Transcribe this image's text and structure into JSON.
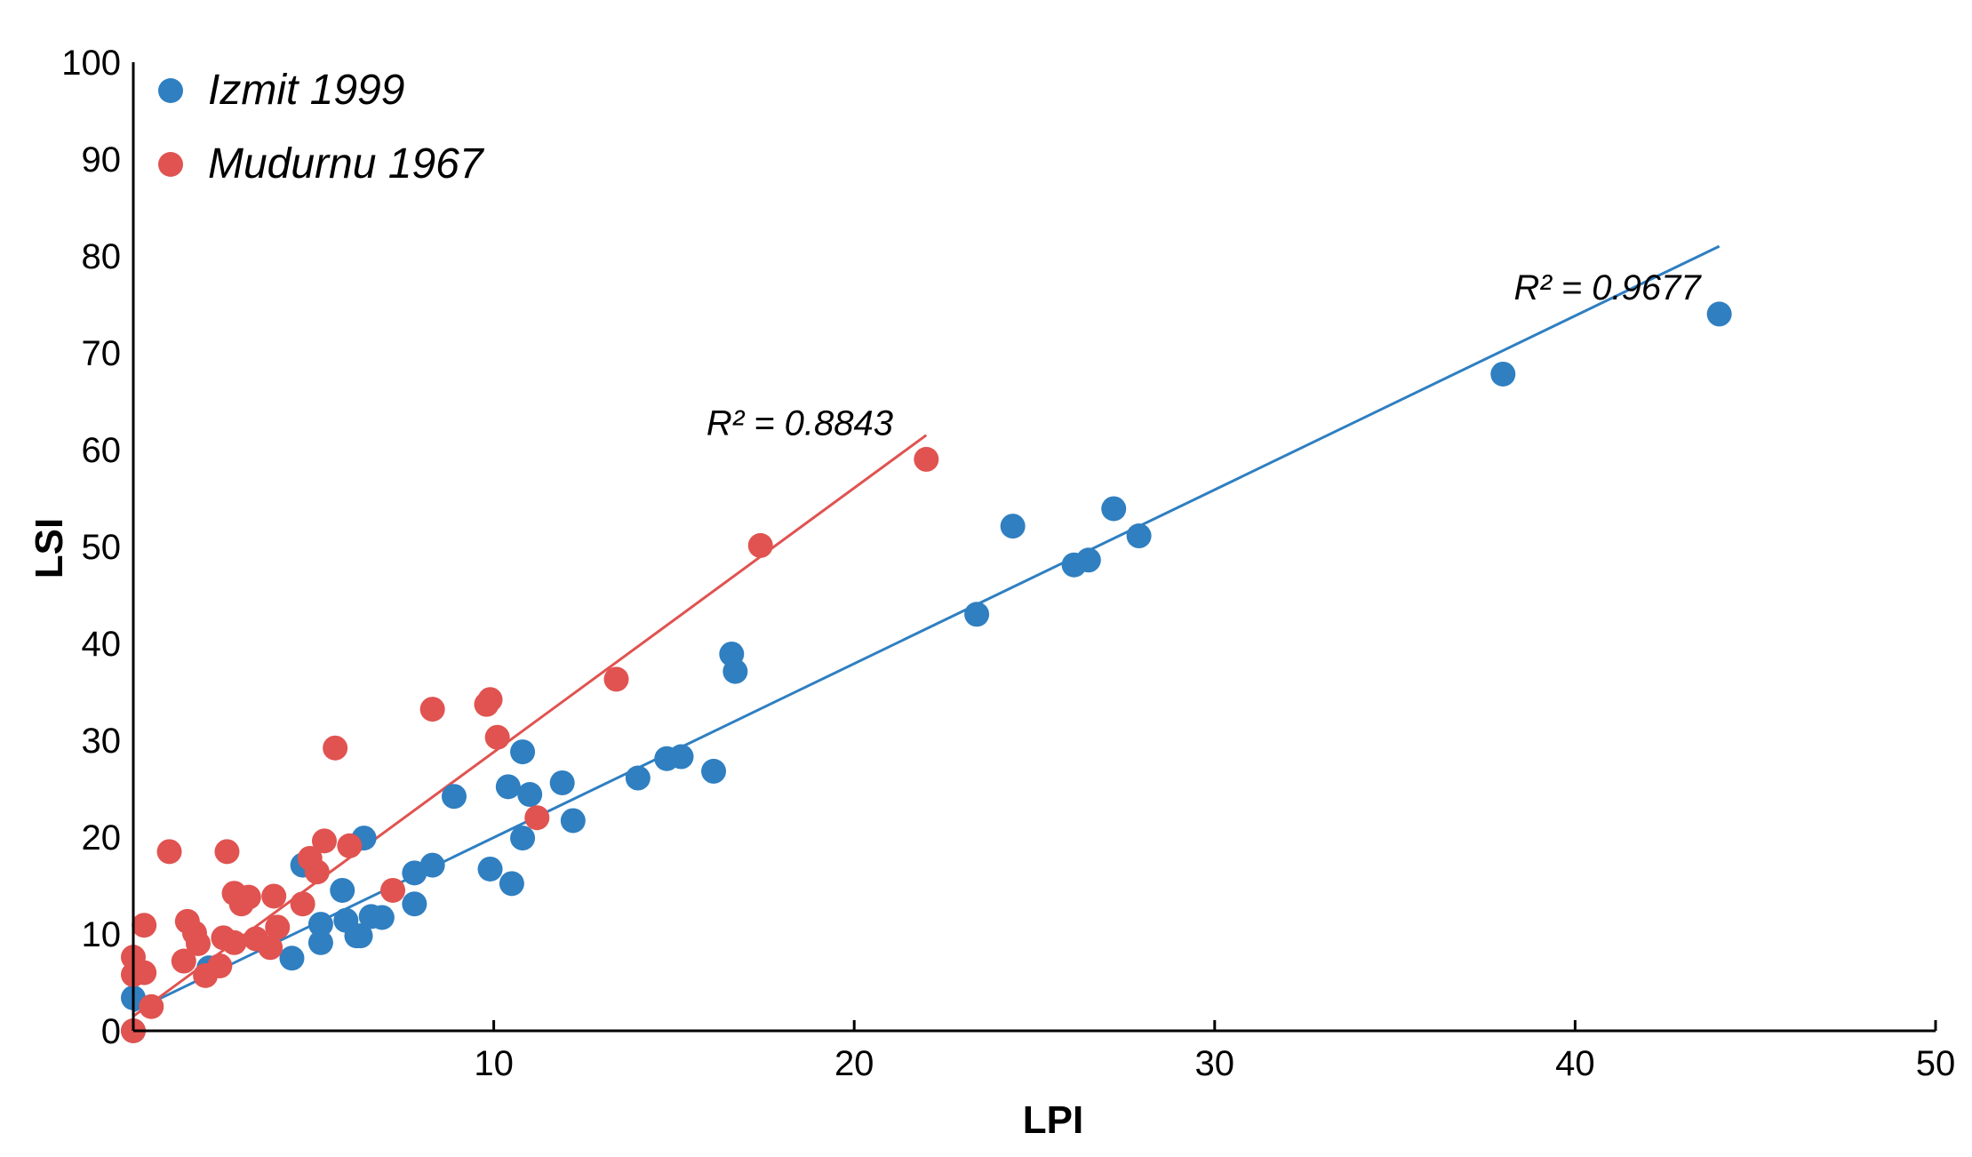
{
  "chart_data": {
    "type": "scatter",
    "title": "",
    "xlabel": "LPI",
    "ylabel": "LSI",
    "xlim": [
      0,
      50
    ],
    "ylim": [
      0,
      100
    ],
    "x_ticks": [
      10,
      20,
      30,
      40,
      50
    ],
    "y_ticks": [
      0,
      10,
      20,
      30,
      40,
      50,
      60,
      70,
      80,
      90,
      100
    ],
    "grid": false,
    "legend_position": "top-left",
    "series": [
      {
        "name": "Izmit 1999",
        "color": "#2f7fc1",
        "trendline": {
          "x": [
            0,
            44
          ],
          "y": [
            2,
            81
          ]
        },
        "r2_label": "R² = 0.9677",
        "r2_label_pos": {
          "x": 38.3,
          "y": 75.5
        },
        "points": [
          {
            "x": 0,
            "y": 3.4
          },
          {
            "x": 0,
            "y": 0
          },
          {
            "x": 2.1,
            "y": 6.5
          },
          {
            "x": 4.4,
            "y": 7.5
          },
          {
            "x": 4.7,
            "y": 17.1
          },
          {
            "x": 5.2,
            "y": 11
          },
          {
            "x": 5.2,
            "y": 9.1
          },
          {
            "x": 5.8,
            "y": 14.5
          },
          {
            "x": 5.9,
            "y": 11.4
          },
          {
            "x": 6.2,
            "y": 9.8
          },
          {
            "x": 6.3,
            "y": 9.8
          },
          {
            "x": 6.4,
            "y": 19.9
          },
          {
            "x": 6.6,
            "y": 11.8
          },
          {
            "x": 6.9,
            "y": 11.7
          },
          {
            "x": 7.8,
            "y": 13.1
          },
          {
            "x": 7.8,
            "y": 16.3
          },
          {
            "x": 8.3,
            "y": 17.1
          },
          {
            "x": 8.9,
            "y": 24.2
          },
          {
            "x": 9.9,
            "y": 16.7
          },
          {
            "x": 10.4,
            "y": 25.2
          },
          {
            "x": 10.5,
            "y": 15.2
          },
          {
            "x": 10.8,
            "y": 28.8
          },
          {
            "x": 10.8,
            "y": 19.9
          },
          {
            "x": 11,
            "y": 24.4
          },
          {
            "x": 11.9,
            "y": 25.6
          },
          {
            "x": 12.2,
            "y": 21.7
          },
          {
            "x": 14,
            "y": 26.1
          },
          {
            "x": 14.8,
            "y": 28.1
          },
          {
            "x": 15.2,
            "y": 28.3
          },
          {
            "x": 16.1,
            "y": 26.8
          },
          {
            "x": 16.6,
            "y": 38.9
          },
          {
            "x": 16.7,
            "y": 37.1
          },
          {
            "x": 23.4,
            "y": 43
          },
          {
            "x": 24.4,
            "y": 52.1
          },
          {
            "x": 26.1,
            "y": 48.1
          },
          {
            "x": 26.5,
            "y": 48.6
          },
          {
            "x": 27.2,
            "y": 53.9
          },
          {
            "x": 27.9,
            "y": 51.1
          },
          {
            "x": 38,
            "y": 67.8
          },
          {
            "x": 44,
            "y": 74
          }
        ]
      },
      {
        "name": "Mudurnu 1967",
        "color": "#e05350",
        "trendline": {
          "x": [
            0,
            22
          ],
          "y": [
            1.5,
            61.5
          ]
        },
        "r2_label": "R² = 0.8843",
        "r2_label_pos": {
          "x": 15.9,
          "y": 61.5
        },
        "points": [
          {
            "x": 0,
            "y": 0
          },
          {
            "x": 0,
            "y": 7.6
          },
          {
            "x": 0,
            "y": 5.8
          },
          {
            "x": 0.3,
            "y": 6
          },
          {
            "x": 0.3,
            "y": 10.9
          },
          {
            "x": 0.5,
            "y": 2.5
          },
          {
            "x": 1,
            "y": 18.5
          },
          {
            "x": 1.4,
            "y": 7.2
          },
          {
            "x": 1.5,
            "y": 11.3
          },
          {
            "x": 1.7,
            "y": 10.1
          },
          {
            "x": 1.8,
            "y": 9
          },
          {
            "x": 2,
            "y": 5.7
          },
          {
            "x": 2.4,
            "y": 6.7
          },
          {
            "x": 2.5,
            "y": 9.6
          },
          {
            "x": 2.6,
            "y": 18.5
          },
          {
            "x": 2.8,
            "y": 14.2
          },
          {
            "x": 2.8,
            "y": 9.1
          },
          {
            "x": 3,
            "y": 13.1
          },
          {
            "x": 3.2,
            "y": 13.8
          },
          {
            "x": 3.4,
            "y": 9.5
          },
          {
            "x": 3.8,
            "y": 8.6
          },
          {
            "x": 3.9,
            "y": 13.9
          },
          {
            "x": 4,
            "y": 10.7
          },
          {
            "x": 4.7,
            "y": 13.1
          },
          {
            "x": 4.9,
            "y": 17.8
          },
          {
            "x": 5.1,
            "y": 16.4
          },
          {
            "x": 5.3,
            "y": 19.6
          },
          {
            "x": 5.6,
            "y": 29.2
          },
          {
            "x": 6,
            "y": 19.1
          },
          {
            "x": 7.2,
            "y": 14.5
          },
          {
            "x": 8.3,
            "y": 33.2
          },
          {
            "x": 9.8,
            "y": 33.7
          },
          {
            "x": 9.9,
            "y": 34.2
          },
          {
            "x": 10.1,
            "y": 30.3
          },
          {
            "x": 11.2,
            "y": 22
          },
          {
            "x": 13.4,
            "y": 36.3
          },
          {
            "x": 17.4,
            "y": 50.1
          },
          {
            "x": 22,
            "y": 59
          }
        ]
      }
    ]
  },
  "legend": [
    {
      "label": "Izmit 1999",
      "color": "#2f7fc1"
    },
    {
      "label": "Mudurnu 1967",
      "color": "#e05350"
    }
  ]
}
